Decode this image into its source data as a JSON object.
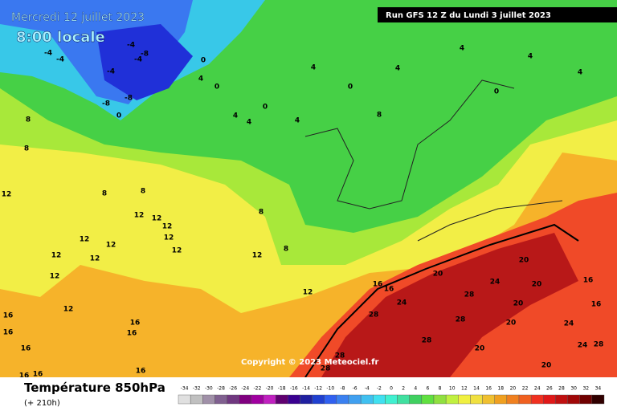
{
  "header": {
    "date": "Mercredi 12 juillet 2023",
    "time": "8:00 locale",
    "run": "Run GFS 12 Z du Lundi 3 juillet 2023"
  },
  "map": {
    "copyright": "Copyright © 2023 Meteociel.fr",
    "contour_labels": [
      -4,
      -4,
      -4,
      -8,
      -4,
      -4,
      -8,
      -8,
      0,
      0,
      4,
      0,
      4,
      0,
      4,
      4,
      4,
      4,
      0,
      4,
      4,
      0,
      4,
      8,
      8,
      8,
      12,
      8,
      8,
      12,
      12,
      12,
      12,
      12,
      12,
      12,
      12,
      12,
      12,
      8,
      12,
      8,
      12,
      16,
      16,
      20,
      20,
      24,
      20,
      24,
      28,
      28,
      20,
      28,
      16,
      16,
      24,
      20,
      28,
      20,
      24,
      28,
      20,
      28,
      28,
      16,
      16,
      16,
      16,
      12,
      16,
      16,
      16,
      16
    ]
  },
  "footer": {
    "title": "Température 850hPa",
    "lead": "(+ 210h)"
  },
  "scale": {
    "values": [
      -34,
      -32,
      -30,
      -28,
      -26,
      -24,
      -22,
      -20,
      -18,
      -16,
      -14,
      -12,
      -10,
      -8,
      -6,
      -4,
      -2,
      0,
      2,
      4,
      6,
      8,
      10,
      12,
      14,
      16,
      18,
      20,
      22,
      24,
      26,
      28,
      30,
      32,
      34
    ],
    "colors": [
      "#e0e0e0",
      "#c0c0c0",
      "#a090a8",
      "#806090",
      "#703880",
      "#800080",
      "#a000a0",
      "#c020c0",
      "#600070",
      "#3a0090",
      "#2020a0",
      "#2040d0",
      "#3060f0",
      "#3a80f0",
      "#40a0f0",
      "#40c0f0",
      "#40e0f0",
      "#40f0d0",
      "#40e0a0",
      "#40d060",
      "#60e040",
      "#90e040",
      "#c0f040",
      "#f0f040",
      "#f0e040",
      "#f0c030",
      "#f0a020",
      "#f08020",
      "#f06020",
      "#f03020",
      "#e01818",
      "#c01010",
      "#a00808",
      "#700000",
      "#300000"
    ]
  }
}
